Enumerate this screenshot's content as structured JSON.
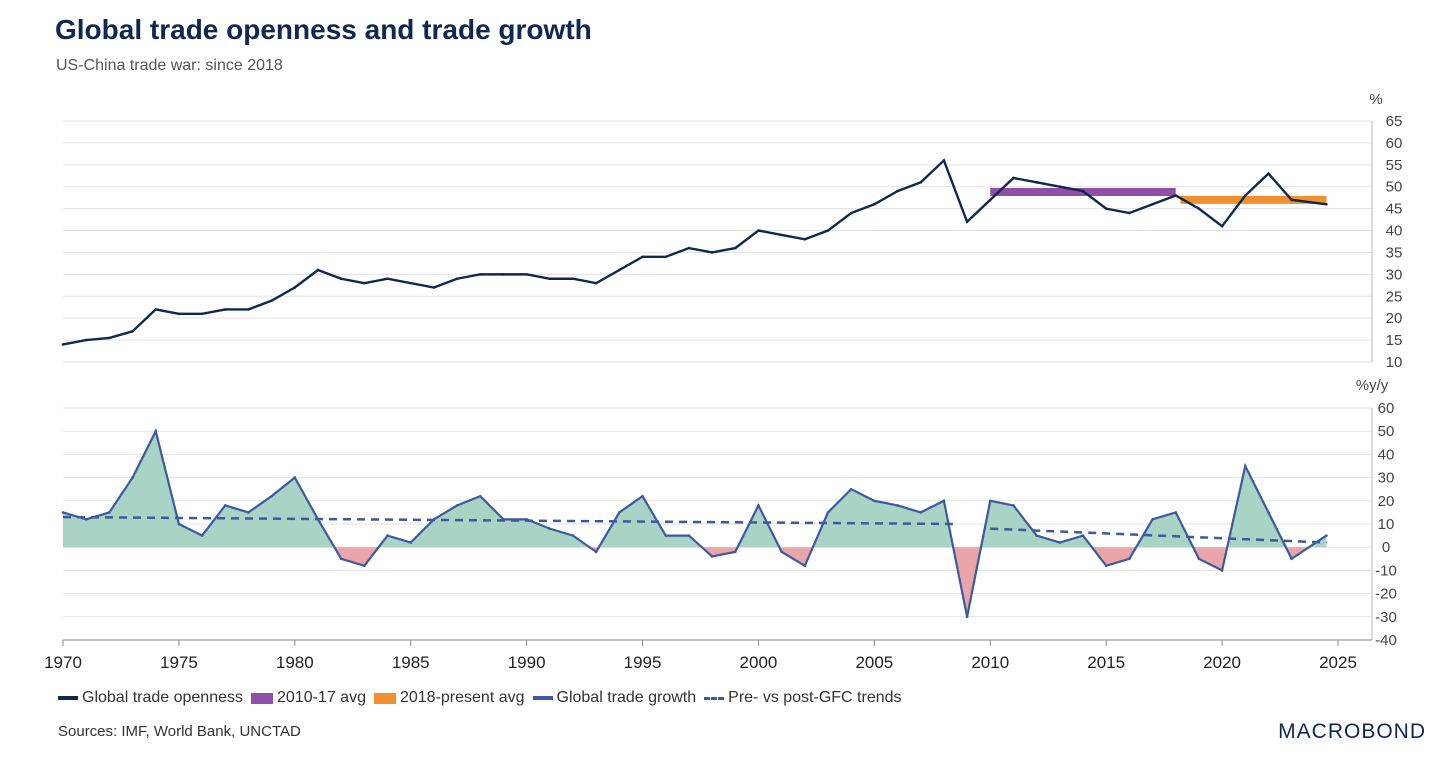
{
  "title": "Global trade openness and trade growth",
  "subtitle": "US-China trade war: since 2018",
  "source": "Sources: IMF, World Bank, UNCTAD",
  "logo": "MACROBOND",
  "colors": {
    "openness": "#10284f",
    "avg1": "#8e4fa8",
    "avg2": "#f0902f",
    "growth": "#3d5a9e",
    "pos": "#a8d3c5",
    "neg": "#eaa5aa",
    "grid": "#e3e3e3"
  },
  "chart_data": [
    {
      "type": "line",
      "title": "Global trade openness",
      "ylabel": "%",
      "ylim": [
        10,
        65
      ],
      "yticks": [
        "65",
        "60",
        "55",
        "50",
        "45",
        "40",
        "35",
        "30",
        "25",
        "20",
        "15",
        "10"
      ],
      "x": [
        1970,
        1971,
        1972,
        1973,
        1974,
        1975,
        1976,
        1977,
        1978,
        1979,
        1980,
        1981,
        1982,
        1983,
        1984,
        1985,
        1986,
        1987,
        1988,
        1989,
        1990,
        1991,
        1992,
        1993,
        1994,
        1995,
        1996,
        1997,
        1998,
        1999,
        2000,
        2001,
        2002,
        2003,
        2004,
        2005,
        2006,
        2007,
        2008,
        2009,
        2010,
        2011,
        2012,
        2013,
        2014,
        2015,
        2016,
        2017,
        2018,
        2019,
        2020,
        2021,
        2022,
        2023,
        2024.5
      ],
      "series": [
        {
          "name": "Global trade openness",
          "values": [
            14,
            15,
            15.5,
            17,
            22,
            21,
            21,
            22,
            22,
            24,
            27,
            31,
            29,
            28,
            29,
            28,
            27,
            29,
            30,
            30,
            30,
            29,
            29,
            28,
            31,
            34,
            34,
            36,
            35,
            36,
            40,
            39,
            38,
            40,
            44,
            46,
            49,
            51,
            56,
            42,
            47,
            52,
            51,
            50,
            49,
            45,
            44,
            46,
            48,
            45,
            41,
            48,
            53,
            47,
            46
          ]
        },
        {
          "name": "2010-17 avg",
          "value": 48.8,
          "x_range": [
            2010,
            2018
          ]
        },
        {
          "name": "2018-present avg",
          "value": 47,
          "x_range": [
            2018.2,
            2024.5
          ]
        }
      ]
    },
    {
      "type": "area",
      "title": "Global trade growth",
      "ylabel": "%y/y",
      "ylim": [
        -40,
        60
      ],
      "yticks": [
        "60",
        "50",
        "40",
        "30",
        "20",
        "10",
        "0",
        "-10",
        "-20",
        "-30",
        "-40"
      ],
      "x": [
        1970,
        1971,
        1972,
        1973,
        1974,
        1975,
        1976,
        1977,
        1978,
        1979,
        1980,
        1981,
        1982,
        1983,
        1984,
        1985,
        1986,
        1987,
        1988,
        1989,
        1990,
        1991,
        1992,
        1993,
        1994,
        1995,
        1996,
        1997,
        1998,
        1999,
        2000,
        2001,
        2002,
        2003,
        2004,
        2005,
        2006,
        2007,
        2008,
        2009,
        2010,
        2011,
        2012,
        2013,
        2014,
        2015,
        2016,
        2017,
        2018,
        2019,
        2020,
        2021,
        2022,
        2023,
        2024.5
      ],
      "series": [
        {
          "name": "Global trade growth",
          "values": [
            15,
            12,
            15,
            30,
            50,
            10,
            5,
            18,
            15,
            22,
            30,
            12,
            -5,
            -8,
            5,
            2,
            12,
            18,
            22,
            12,
            12,
            8,
            5,
            -2,
            15,
            22,
            5,
            5,
            -4,
            -2,
            18,
            -2,
            -8,
            15,
            25,
            20,
            18,
            15,
            20,
            -30,
            20,
            18,
            5,
            2,
            5,
            -8,
            -5,
            12,
            15,
            -5,
            -10,
            35,
            15,
            -5,
            5
          ]
        },
        {
          "name": "Pre- vs post-GFC trends",
          "segments": [
            {
              "x": [
                1970,
                2008.5
              ],
              "y": [
                13,
                10
              ]
            },
            {
              "x": [
                2010,
                2024.5
              ],
              "y": [
                8,
                2
              ]
            }
          ]
        }
      ]
    }
  ],
  "xaxis": {
    "xlim": [
      1970,
      2025
    ],
    "ticks": [
      "1970",
      "1975",
      "1980",
      "1985",
      "1990",
      "1995",
      "2000",
      "2005",
      "2010",
      "2015",
      "2020",
      "2025"
    ]
  },
  "legend": [
    "Global trade openness",
    "2010-17 avg",
    "2018-present avg",
    "Global trade growth",
    "Pre- vs post-GFC trends"
  ]
}
